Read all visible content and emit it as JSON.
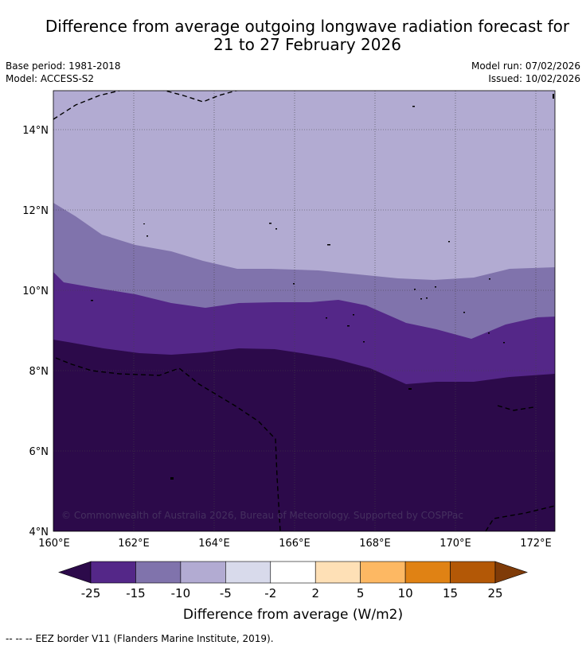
{
  "title": {
    "line1": "Difference from average outgoing longwave radiation forecast for",
    "line2": "21 to 27 February 2026"
  },
  "meta": {
    "base_period": "Base period: 1981-2018",
    "model": "Model: ACCESS-S2",
    "model_run": "Model run: 07/02/2026",
    "issued": "Issued: 10/02/2026"
  },
  "map": {
    "lon_ticks": [
      "160°E",
      "162°E",
      "164°E",
      "166°E",
      "168°E",
      "170°E",
      "172°E"
    ],
    "lat_ticks": [
      "14°N",
      "12°N",
      "10°N",
      "8°N",
      "6°N",
      "4°N"
    ],
    "copyright": "© Commonwealth of Australia 2026, Bureau of Meteorology. Supported by COSPPac"
  },
  "colorbar": {
    "labels": [
      "-25",
      "-15",
      "-10",
      "-5",
      "-2",
      "2",
      "5",
      "10",
      "15",
      "25"
    ],
    "colors": [
      "#2c0a4a",
      "#542788",
      "#8073ac",
      "#b2abd2",
      "#d8daeb",
      "#ffffff",
      "#fee0b6",
      "#fdb863",
      "#e08214",
      "#b35806",
      "#7f3b08"
    ],
    "title": "Difference from average (W/m2)"
  },
  "footer": {
    "legend_symbol": "--  --  --",
    "legend_text": "EEZ border V11 (Flanders Marine Institute, 2019)."
  }
}
